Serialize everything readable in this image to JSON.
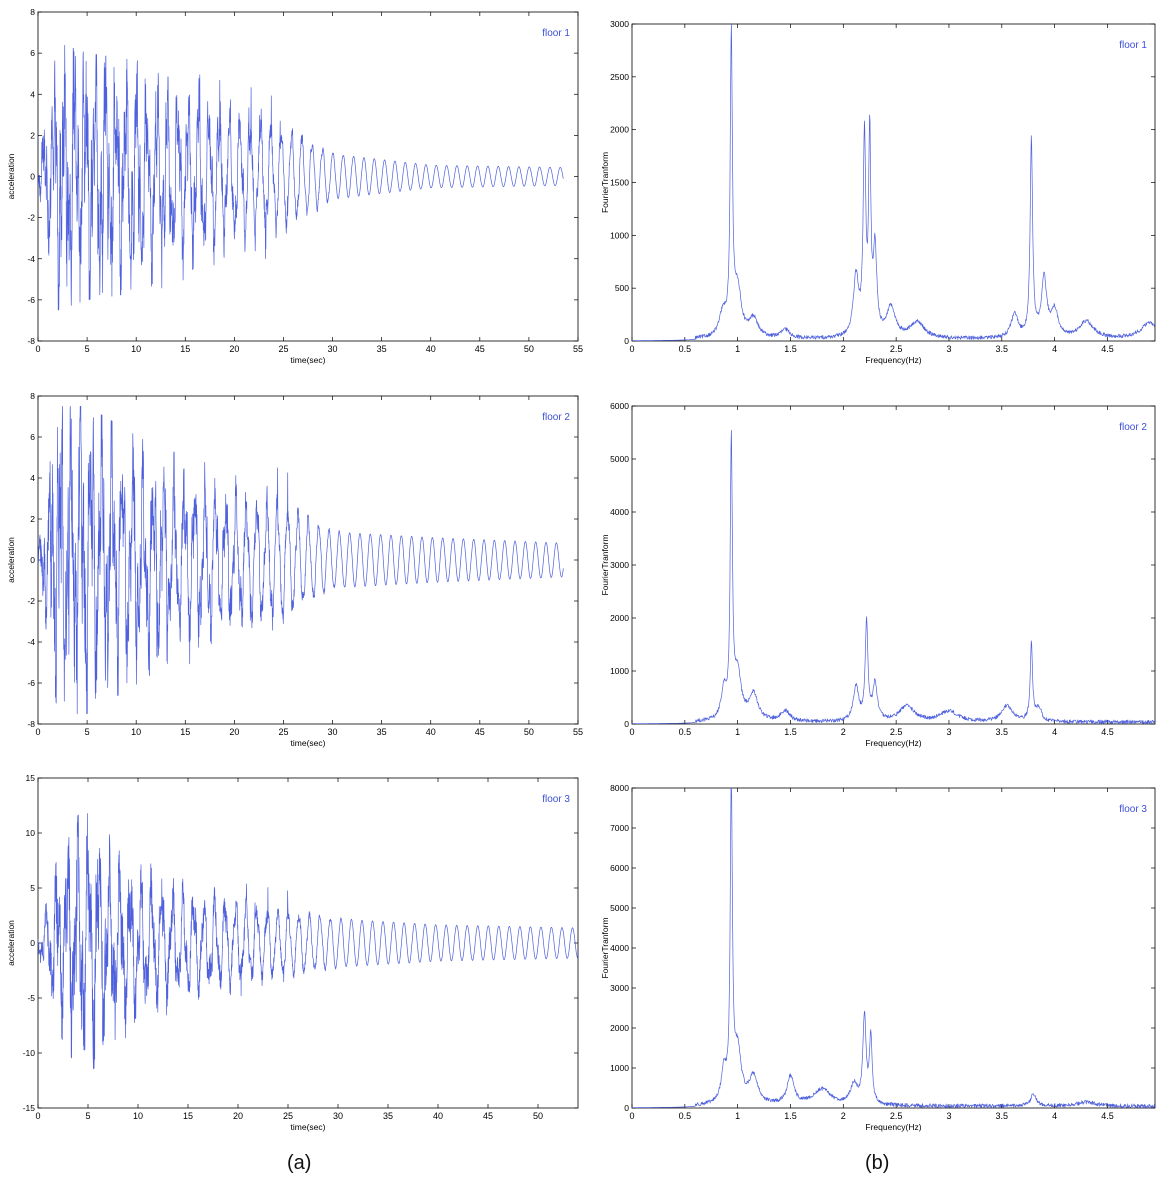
{
  "figure_labels": {
    "a": "(a)",
    "b": "(b)"
  },
  "colors": {
    "trace": "#3b4fd9",
    "axis": "#000000",
    "legend": "#3b4fd9"
  },
  "chart_data": [
    {
      "type": "line",
      "panel": "a1",
      "legend": "floor 1",
      "xlabel": "time(sec)",
      "ylabel": "acceleration",
      "xlim": [
        0,
        55
      ],
      "ylim": [
        -8,
        8
      ],
      "xticks": [
        0,
        5,
        10,
        15,
        20,
        25,
        30,
        35,
        40,
        45,
        50,
        55
      ],
      "xticklabels": [
        "0",
        "5",
        "10",
        "15",
        "20",
        "25",
        "30",
        "35",
        "40",
        "45",
        "50",
        "55"
      ],
      "yticks": [
        -8,
        -6,
        -4,
        -2,
        0,
        2,
        4,
        6,
        8
      ],
      "yticklabels": [
        "-8",
        "-6",
        "-4",
        "-2",
        "0",
        "2",
        "4",
        "6",
        "8"
      ],
      "x_end": 53.5,
      "envelope": [
        [
          0,
          0.5
        ],
        [
          2,
          6.5
        ],
        [
          5,
          6
        ],
        [
          12,
          5.5
        ],
        [
          20,
          4.5
        ],
        [
          25,
          4
        ],
        [
          30,
          2
        ],
        [
          40,
          1
        ],
        [
          53.5,
          0.8
        ]
      ],
      "dominant_hz": [
        0.95,
        2.2,
        3.8
      ],
      "tail_period_sec": 1.05
    },
    {
      "type": "line",
      "panel": "a2",
      "legend": "floor 2",
      "xlabel": "time(sec)",
      "ylabel": "acceleration",
      "xlim": [
        0,
        55
      ],
      "ylim": [
        -8,
        8
      ],
      "xticks": [
        0,
        5,
        10,
        15,
        20,
        25,
        30,
        35,
        40,
        45,
        50,
        55
      ],
      "xticklabels": [
        "0",
        "5",
        "10",
        "15",
        "20",
        "25",
        "30",
        "35",
        "40",
        "45",
        "50",
        "55"
      ],
      "yticks": [
        -8,
        -6,
        -4,
        -2,
        0,
        2,
        4,
        6,
        8
      ],
      "yticklabels": [
        "-8",
        "-6",
        "-4",
        "-2",
        "0",
        "2",
        "4",
        "6",
        "8"
      ],
      "x_end": 53.5,
      "envelope": [
        [
          0,
          0.5
        ],
        [
          2,
          7.5
        ],
        [
          5,
          7.5
        ],
        [
          12,
          5.5
        ],
        [
          20,
          4.5
        ],
        [
          25,
          4.5
        ],
        [
          30,
          2.5
        ],
        [
          40,
          2
        ],
        [
          53.5,
          1.5
        ]
      ],
      "dominant_hz": [
        0.95,
        2.2,
        3.8
      ],
      "tail_period_sec": 1.05
    },
    {
      "type": "line",
      "panel": "a3",
      "legend": "floor 3",
      "xlabel": "time(sec)",
      "ylabel": "acceleration",
      "xlim": [
        0,
        54
      ],
      "ylim": [
        -15,
        15
      ],
      "xticks": [
        0,
        5,
        10,
        15,
        20,
        25,
        30,
        35,
        40,
        45,
        50
      ],
      "xticklabels": [
        "0",
        "5",
        "10",
        "15",
        "20",
        "25",
        "30",
        "35",
        "40",
        "45",
        "50"
      ],
      "yticks": [
        -15,
        -10,
        -5,
        0,
        5,
        10,
        15
      ],
      "yticklabels": [
        "-15",
        "-10",
        "-5",
        "0",
        "5",
        "10",
        "15"
      ],
      "x_end": 54,
      "envelope": [
        [
          0,
          1
        ],
        [
          2,
          8
        ],
        [
          4.5,
          12.5
        ],
        [
          8,
          9
        ],
        [
          12,
          7
        ],
        [
          20,
          5.5
        ],
        [
          30,
          4
        ],
        [
          40,
          3
        ],
        [
          54,
          2.5
        ]
      ],
      "dominant_hz": [
        0.95,
        2.2
      ],
      "tail_period_sec": 1.05
    },
    {
      "type": "line",
      "panel": "b1",
      "legend": "floor 1",
      "xlabel": "Frequency(Hz)",
      "ylabel": "FourierTranform",
      "xlim": [
        0,
        4.95
      ],
      "ylim": [
        0,
        3000
      ],
      "xticks": [
        0,
        0.5,
        1,
        1.5,
        2,
        2.5,
        3,
        3.5,
        4,
        4.5
      ],
      "xticklabels": [
        "0",
        "0.5",
        "1",
        "1.5",
        "2",
        "2.5",
        "3",
        "3.5",
        "4",
        "4.5"
      ],
      "yticks": [
        0,
        500,
        1000,
        1500,
        2000,
        2500,
        3000
      ],
      "yticklabels": [
        "0",
        "500",
        "1000",
        "1500",
        "2000",
        "2500",
        "3000"
      ],
      "peaks": [
        {
          "f": 0.94,
          "a": 2820,
          "w": 0.012
        },
        {
          "f": 1.0,
          "a": 450,
          "w": 0.04
        },
        {
          "f": 0.86,
          "a": 220,
          "w": 0.04
        },
        {
          "f": 1.15,
          "a": 180,
          "w": 0.05
        },
        {
          "f": 1.45,
          "a": 80,
          "w": 0.05
        },
        {
          "f": 2.12,
          "a": 560,
          "w": 0.03
        },
        {
          "f": 2.2,
          "a": 1850,
          "w": 0.014
        },
        {
          "f": 2.25,
          "a": 1850,
          "w": 0.012
        },
        {
          "f": 2.3,
          "a": 800,
          "w": 0.02
        },
        {
          "f": 2.45,
          "a": 280,
          "w": 0.05
        },
        {
          "f": 2.7,
          "a": 150,
          "w": 0.08
        },
        {
          "f": 3.62,
          "a": 220,
          "w": 0.04
        },
        {
          "f": 3.78,
          "a": 1850,
          "w": 0.014
        },
        {
          "f": 3.9,
          "a": 550,
          "w": 0.03
        },
        {
          "f": 4.0,
          "a": 250,
          "w": 0.04
        },
        {
          "f": 4.3,
          "a": 160,
          "w": 0.08
        },
        {
          "f": 4.9,
          "a": 150,
          "w": 0.1
        }
      ]
    },
    {
      "type": "line",
      "panel": "b2",
      "legend": "floor 2",
      "xlabel": "Frequency(Hz)",
      "ylabel": "FourierTranform",
      "xlim": [
        0,
        4.95
      ],
      "ylim": [
        0,
        6000
      ],
      "xticks": [
        0,
        0.5,
        1,
        1.5,
        2,
        2.5,
        3,
        3.5,
        4,
        4.5
      ],
      "xticklabels": [
        "0",
        "0.5",
        "1",
        "1.5",
        "2",
        "2.5",
        "3",
        "3.5",
        "4",
        "4.5"
      ],
      "yticks": [
        0,
        1000,
        2000,
        3000,
        4000,
        5000,
        6000
      ],
      "yticklabels": [
        "0",
        "1000",
        "2000",
        "3000",
        "4000",
        "5000",
        "6000"
      ],
      "peaks": [
        {
          "f": 0.94,
          "a": 5150,
          "w": 0.012
        },
        {
          "f": 0.87,
          "a": 550,
          "w": 0.03
        },
        {
          "f": 1.0,
          "a": 850,
          "w": 0.04
        },
        {
          "f": 1.15,
          "a": 500,
          "w": 0.05
        },
        {
          "f": 1.45,
          "a": 200,
          "w": 0.05
        },
        {
          "f": 2.12,
          "a": 650,
          "w": 0.03
        },
        {
          "f": 2.22,
          "a": 1850,
          "w": 0.015
        },
        {
          "f": 2.3,
          "a": 700,
          "w": 0.025
        },
        {
          "f": 2.6,
          "a": 300,
          "w": 0.08
        },
        {
          "f": 3.0,
          "a": 200,
          "w": 0.1
        },
        {
          "f": 3.55,
          "a": 300,
          "w": 0.06
        },
        {
          "f": 3.78,
          "a": 1500,
          "w": 0.013
        },
        {
          "f": 3.85,
          "a": 250,
          "w": 0.03
        }
      ]
    },
    {
      "type": "line",
      "panel": "b3",
      "legend": "floor 3",
      "xlabel": "Frequency(Hz)",
      "ylabel": "FourierTranform",
      "xlim": [
        0,
        4.95
      ],
      "ylim": [
        0,
        8000
      ],
      "xticks": [
        0,
        0.5,
        1,
        1.5,
        2,
        2.5,
        3,
        3.5,
        4,
        4.5
      ],
      "xticklabels": [
        "0",
        "0.5",
        "1",
        "1.5",
        "2",
        "2.5",
        "3",
        "3.5",
        "4",
        "4.5"
      ],
      "yticks": [
        0,
        1000,
        2000,
        3000,
        4000,
        5000,
        6000,
        7000,
        8000
      ],
      "yticklabels": [
        "0",
        "1000",
        "2000",
        "3000",
        "4000",
        "5000",
        "6000",
        "7000",
        "8000"
      ],
      "peaks": [
        {
          "f": 0.94,
          "a": 7900,
          "w": 0.012
        },
        {
          "f": 0.87,
          "a": 800,
          "w": 0.03
        },
        {
          "f": 1.0,
          "a": 1300,
          "w": 0.04
        },
        {
          "f": 1.15,
          "a": 700,
          "w": 0.05
        },
        {
          "f": 1.5,
          "a": 700,
          "w": 0.04
        },
        {
          "f": 1.8,
          "a": 400,
          "w": 0.1
        },
        {
          "f": 2.2,
          "a": 2200,
          "w": 0.018
        },
        {
          "f": 2.26,
          "a": 1700,
          "w": 0.015
        },
        {
          "f": 2.1,
          "a": 500,
          "w": 0.04
        },
        {
          "f": 3.8,
          "a": 300,
          "w": 0.03
        },
        {
          "f": 4.3,
          "a": 100,
          "w": 0.1
        }
      ]
    }
  ]
}
